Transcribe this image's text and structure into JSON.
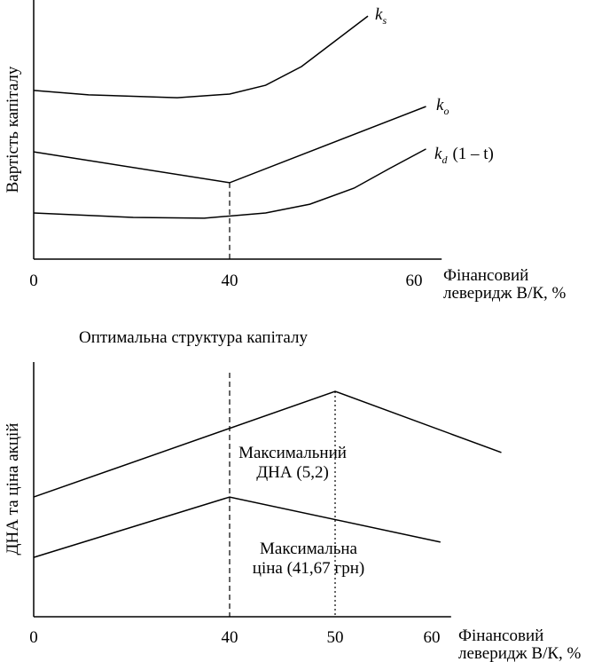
{
  "chart_data": [
    {
      "type": "line",
      "ylabel": "Вартість капіталу",
      "xlabel": [
        "Фінансовий",
        "леверидж В/К, %"
      ],
      "xlim": [
        0,
        63
      ],
      "ylim": [
        0,
        100
      ],
      "xticks": [
        0,
        40,
        60
      ],
      "series": [
        {
          "name": "k",
          "subscript": "s",
          "color": "#000000",
          "x": [
            0,
            11.2,
            29.3,
            40,
            43.9,
            47.8,
            51.6,
            55
          ],
          "values": [
            65.1,
            63.4,
            62.3,
            63.7,
            67.1,
            74.3,
            84.6,
            93.8
          ]
        },
        {
          "name": "k",
          "subscript": "o",
          "color": "#000000",
          "x": [
            0,
            40,
            61.3
          ],
          "values": [
            41.4,
            29.5,
            58.9
          ]
        },
        {
          "name": "k",
          "subscript": "d",
          "suffix": "(1 – t)",
          "color": "#000000",
          "x": [
            0,
            20.3,
            34.8,
            43.9,
            48.7,
            53.5,
            57.3,
            61.3
          ],
          "values": [
            17.8,
            16.1,
            15.8,
            17.8,
            21.2,
            27.4,
            34.9,
            42.5
          ]
        }
      ],
      "reference_lines": [
        {
          "x": 40,
          "y": 29.5,
          "style": "dashed"
        }
      ]
    },
    {
      "type": "line",
      "title": "Оптимальна структура капіталу",
      "ylabel": "ДНА та ціна акцій",
      "xlabel": [
        "Фінансовий",
        "леверидж В/К, %"
      ],
      "xlim": [
        0,
        62
      ],
      "ylim": [
        0,
        100
      ],
      "xticks": [
        0,
        40,
        50,
        60
      ],
      "series": [
        {
          "color": "#000000",
          "x": [
            0,
            50,
            67.2
          ],
          "values": [
            47.0,
            88.5,
            64.5
          ]
        },
        {
          "color": "#000000",
          "x": [
            0,
            40,
            60.9
          ],
          "values": [
            23.3,
            47.0,
            29.3
          ]
        }
      ],
      "reference_lines": [
        {
          "x": 40,
          "y": 95.8,
          "style": "dashed"
        },
        {
          "x": 50,
          "y": 88.5,
          "style": "dotted"
        }
      ],
      "annotations": [
        [
          "Максимальний",
          "ДНА (5,2)"
        ],
        [
          "Максимальна",
          "ціна (41,67 грн)"
        ]
      ]
    }
  ]
}
